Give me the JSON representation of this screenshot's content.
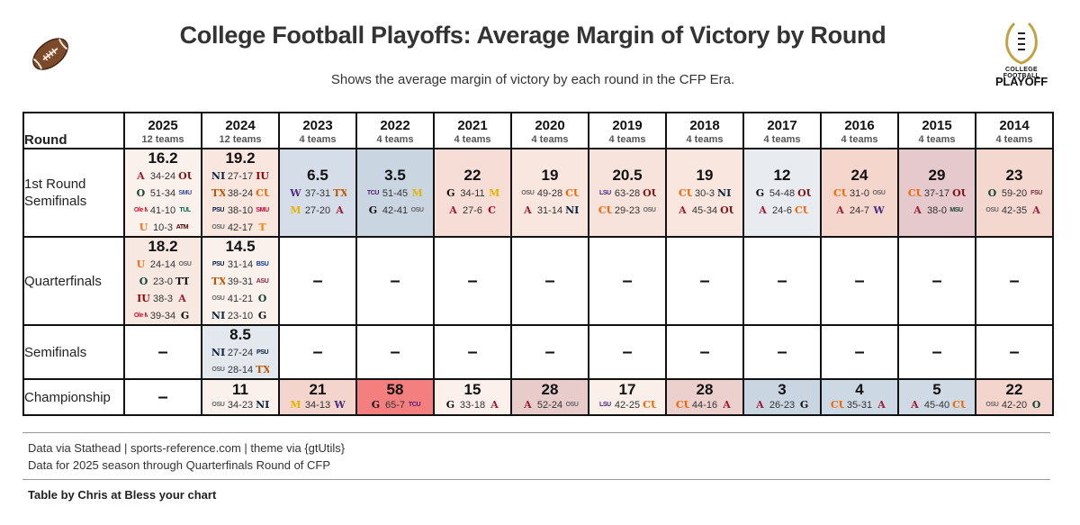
{
  "header": {
    "title": "College Football Playoffs: Average Margin of Victory by Round",
    "subtitle": "Shows the average margin of victory by each round in the CFP Era.",
    "logo_line1": "COLLEGE FOOTBALL",
    "logo_line2": "PLAYOFF"
  },
  "footer": {
    "source": "Data via Stathead | sports-reference.com | theme via {gtUtils}",
    "note": "Data for 2025 season through Quarterfinals Round of CFP",
    "credit": "Table by Chris at Bless your chart"
  },
  "chart_data": {
    "type": "table",
    "title": "College Football Playoffs: Average Margin of Victory by Round",
    "column_header": "Round",
    "color_scale": {
      "low": "#c9d5e1",
      "mid": "#fbf0ec",
      "high": "#f47f7f"
    },
    "columns": [
      {
        "year": "2025",
        "teams": "12 teams"
      },
      {
        "year": "2024",
        "teams": "12 teams"
      },
      {
        "year": "2023",
        "teams": "4 teams"
      },
      {
        "year": "2022",
        "teams": "4 teams"
      },
      {
        "year": "2021",
        "teams": "4 teams"
      },
      {
        "year": "2020",
        "teams": "4 teams"
      },
      {
        "year": "2019",
        "teams": "4 teams"
      },
      {
        "year": "2018",
        "teams": "4 teams"
      },
      {
        "year": "2017",
        "teams": "4 teams"
      },
      {
        "year": "2016",
        "teams": "4 teams"
      },
      {
        "year": "2015",
        "teams": "4 teams"
      },
      {
        "year": "2014",
        "teams": "4 teams"
      }
    ],
    "rows": [
      {
        "round": "1st Round Semifinals",
        "cells": [
          {
            "avg": "16.2",
            "bg": "#fbf1ec",
            "games": [
              {
                "w": "A",
                "wc": "#9e1b32",
                "score": "34-24",
                "l": "OU",
                "lc": "#841617"
              },
              {
                "w": "O",
                "wc": "#154733",
                "score": "51-34",
                "l": "SMU",
                "lc": "#354ca1"
              },
              {
                "w": "Ole Miss",
                "wc": "#ce1126",
                "score": "41-10",
                "l": "TUL",
                "lc": "#006747"
              },
              {
                "w": "U",
                "wc": "#f47321",
                "score": "10-3",
                "l": "ATM",
                "lc": "#500000"
              }
            ]
          },
          {
            "avg": "19.2",
            "bg": "#f8e6df",
            "games": [
              {
                "w": "ND",
                "wc": "#0c2340",
                "score": "27-17",
                "l": "IU",
                "lc": "#990000"
              },
              {
                "w": "TX",
                "wc": "#bf5700",
                "score": "38-24",
                "l": "CU",
                "lc": "#f56600"
              },
              {
                "w": "PSU",
                "wc": "#041e42",
                "score": "38-10",
                "l": "SMU",
                "lc": "#cc0035"
              },
              {
                "w": "OSU",
                "wc": "#666666",
                "score": "42-17",
                "l": "T",
                "lc": "#ff8200"
              }
            ]
          },
          {
            "avg": "6.5",
            "bg": "#d5dee8",
            "games": [
              {
                "w": "W",
                "wc": "#4b2e83",
                "score": "37-31",
                "l": "TX",
                "lc": "#bf5700"
              },
              {
                "w": "M",
                "wc": "#e6b400",
                "score": "27-20",
                "l": "A",
                "lc": "#9e1b32"
              }
            ]
          },
          {
            "avg": "3.5",
            "bg": "#c9d5e1",
            "games": [
              {
                "w": "TCU",
                "wc": "#4d1979",
                "score": "51-45",
                "l": "M",
                "lc": "#e6b400"
              },
              {
                "w": "G",
                "wc": "#111111",
                "score": "42-41",
                "l": "OSU",
                "lc": "#666666"
              }
            ]
          },
          {
            "avg": "22",
            "bg": "#f6ddd5",
            "games": [
              {
                "w": "G",
                "wc": "#111111",
                "score": "34-11",
                "l": "M",
                "lc": "#e6b400"
              },
              {
                "w": "A",
                "wc": "#9e1b32",
                "score": "27-6",
                "l": "C",
                "lc": "#b6001f"
              }
            ]
          },
          {
            "avg": "19",
            "bg": "#f8e6df",
            "games": [
              {
                "w": "OSU",
                "wc": "#666666",
                "score": "49-28",
                "l": "CU",
                "lc": "#f56600"
              },
              {
                "w": "A",
                "wc": "#9e1b32",
                "score": "31-14",
                "l": "ND",
                "lc": "#0c2340"
              }
            ]
          },
          {
            "avg": "20.5",
            "bg": "#f7e3dc",
            "games": [
              {
                "w": "LSU",
                "wc": "#461d7c",
                "score": "63-28",
                "l": "OU",
                "lc": "#841617"
              },
              {
                "w": "CU",
                "wc": "#f56600",
                "score": "29-23",
                "l": "OSU",
                "lc": "#666666"
              }
            ]
          },
          {
            "avg": "19",
            "bg": "#f8e6df",
            "games": [
              {
                "w": "CU",
                "wc": "#f56600",
                "score": "30-3",
                "l": "ND",
                "lc": "#0c2340"
              },
              {
                "w": "A",
                "wc": "#9e1b32",
                "score": "45-34",
                "l": "OU",
                "lc": "#841617"
              }
            ]
          },
          {
            "avg": "12",
            "bg": "#e8ebf0",
            "games": [
              {
                "w": "G",
                "wc": "#111111",
                "score": "54-48",
                "l": "OU",
                "lc": "#841617"
              },
              {
                "w": "A",
                "wc": "#9e1b32",
                "score": "24-6",
                "l": "CU",
                "lc": "#f56600"
              }
            ]
          },
          {
            "avg": "24",
            "bg": "#f4d6cd",
            "games": [
              {
                "w": "CU",
                "wc": "#f56600",
                "score": "31-0",
                "l": "OSU",
                "lc": "#666666"
              },
              {
                "w": "A",
                "wc": "#9e1b32",
                "score": "24-7",
                "l": "W",
                "lc": "#4b2e83"
              }
            ]
          },
          {
            "avg": "29",
            "bg": "#e6c9cc",
            "games": [
              {
                "w": "CU",
                "wc": "#f56600",
                "score": "37-17",
                "l": "OU",
                "lc": "#841617"
              },
              {
                "w": "A",
                "wc": "#9e1b32",
                "score": "38-0",
                "l": "MSU",
                "lc": "#18453b"
              }
            ]
          },
          {
            "avg": "23",
            "bg": "#f4d8d0",
            "games": [
              {
                "w": "O",
                "wc": "#154733",
                "score": "59-20",
                "l": "FSU",
                "lc": "#782f40"
              },
              {
                "w": "OSU",
                "wc": "#666666",
                "score": "42-35",
                "l": "A",
                "lc": "#9e1b32"
              }
            ]
          }
        ]
      },
      {
        "round": "Quarterfinals",
        "cells": [
          {
            "avg": "18.2",
            "bg": "#f8e8e2",
            "games": [
              {
                "w": "U",
                "wc": "#f47321",
                "score": "24-14",
                "l": "OSU",
                "lc": "#666666"
              },
              {
                "w": "O",
                "wc": "#154733",
                "score": "23-0",
                "l": "TT",
                "lc": "#111111"
              },
              {
                "w": "IU",
                "wc": "#990000",
                "score": "38-3",
                "l": "A",
                "lc": "#9e1b32"
              },
              {
                "w": "Ole Miss",
                "wc": "#ce1126",
                "score": "39-34",
                "l": "G",
                "lc": "#111111"
              }
            ]
          },
          {
            "avg": "14.5",
            "bg": "#fbf1ec",
            "games": [
              {
                "w": "PSU",
                "wc": "#041e42",
                "score": "31-14",
                "l": "BSU",
                "lc": "#0033a0"
              },
              {
                "w": "TX",
                "wc": "#bf5700",
                "score": "39-31",
                "l": "ASU",
                "lc": "#8c1d40"
              },
              {
                "w": "OSU",
                "wc": "#666666",
                "score": "41-21",
                "l": "O",
                "lc": "#154733"
              },
              {
                "w": "ND",
                "wc": "#0c2340",
                "score": "23-10",
                "l": "G",
                "lc": "#111111"
              }
            ]
          },
          {
            "dash": "–"
          },
          {
            "dash": "–"
          },
          {
            "dash": "–"
          },
          {
            "dash": "–"
          },
          {
            "dash": "–"
          },
          {
            "dash": "–"
          },
          {
            "dash": "–"
          },
          {
            "dash": "–"
          },
          {
            "dash": "–"
          },
          {
            "dash": "–"
          }
        ]
      },
      {
        "round": "Semifinals",
        "cells": [
          {
            "dash": "–"
          },
          {
            "avg": "8.5",
            "bg": "#e3e8ef",
            "games": [
              {
                "w": "ND",
                "wc": "#0c2340",
                "score": "27-24",
                "l": "PSU",
                "lc": "#041e42"
              },
              {
                "w": "OSU",
                "wc": "#666666",
                "score": "28-14",
                "l": "TX",
                "lc": "#bf5700"
              }
            ]
          },
          {
            "dash": "–"
          },
          {
            "dash": "–"
          },
          {
            "dash": "–"
          },
          {
            "dash": "–"
          },
          {
            "dash": "–"
          },
          {
            "dash": "–"
          },
          {
            "dash": "–"
          },
          {
            "dash": "–"
          },
          {
            "dash": "–"
          },
          {
            "dash": "–"
          }
        ]
      },
      {
        "round": "Championship",
        "cells": [
          {
            "dash": "–"
          },
          {
            "avg": "11",
            "bg": "#fbf1ec",
            "games": [
              {
                "w": "OSU",
                "wc": "#666666",
                "score": "34-23",
                "l": "ND",
                "lc": "#0c2340"
              }
            ]
          },
          {
            "avg": "21",
            "bg": "#f3d5cd",
            "games": [
              {
                "w": "M",
                "wc": "#e6b400",
                "score": "34-13",
                "l": "W",
                "lc": "#4b2e83"
              }
            ]
          },
          {
            "avg": "58",
            "bg": "#f47f7f",
            "games": [
              {
                "w": "G",
                "wc": "#111111",
                "score": "65-7",
                "l": "TCU",
                "lc": "#4d1979"
              }
            ]
          },
          {
            "avg": "15",
            "bg": "#fbf0ec",
            "games": [
              {
                "w": "G",
                "wc": "#111111",
                "score": "33-18",
                "l": "A",
                "lc": "#9e1b32"
              }
            ]
          },
          {
            "avg": "28",
            "bg": "#e8cbcb",
            "games": [
              {
                "w": "A",
                "wc": "#9e1b32",
                "score": "52-24",
                "l": "OSU",
                "lc": "#666666"
              }
            ]
          },
          {
            "avg": "17",
            "bg": "#fbefea",
            "games": [
              {
                "w": "LSU",
                "wc": "#461d7c",
                "score": "42-25",
                "l": "CU",
                "lc": "#f56600"
              }
            ]
          },
          {
            "avg": "28",
            "bg": "#ebd0cd",
            "games": [
              {
                "w": "CU",
                "wc": "#f56600",
                "score": "44-16",
                "l": "A",
                "lc": "#9e1b32"
              }
            ]
          },
          {
            "avg": "3",
            "bg": "#c9d5e1",
            "games": [
              {
                "w": "A",
                "wc": "#9e1b32",
                "score": "26-23",
                "l": "G",
                "lc": "#111111"
              }
            ]
          },
          {
            "avg": "4",
            "bg": "#ccd8e3",
            "games": [
              {
                "w": "CU",
                "wc": "#f56600",
                "score": "35-31",
                "l": "A",
                "lc": "#9e1b32"
              }
            ]
          },
          {
            "avg": "5",
            "bg": "#cfdae4",
            "games": [
              {
                "w": "A",
                "wc": "#9e1b32",
                "score": "45-40",
                "l": "CU",
                "lc": "#f56600"
              }
            ]
          },
          {
            "avg": "22",
            "bg": "#f3d5cd",
            "games": [
              {
                "w": "OSU",
                "wc": "#666666",
                "score": "42-20",
                "l": "O",
                "lc": "#154733"
              }
            ]
          }
        ]
      }
    ]
  }
}
